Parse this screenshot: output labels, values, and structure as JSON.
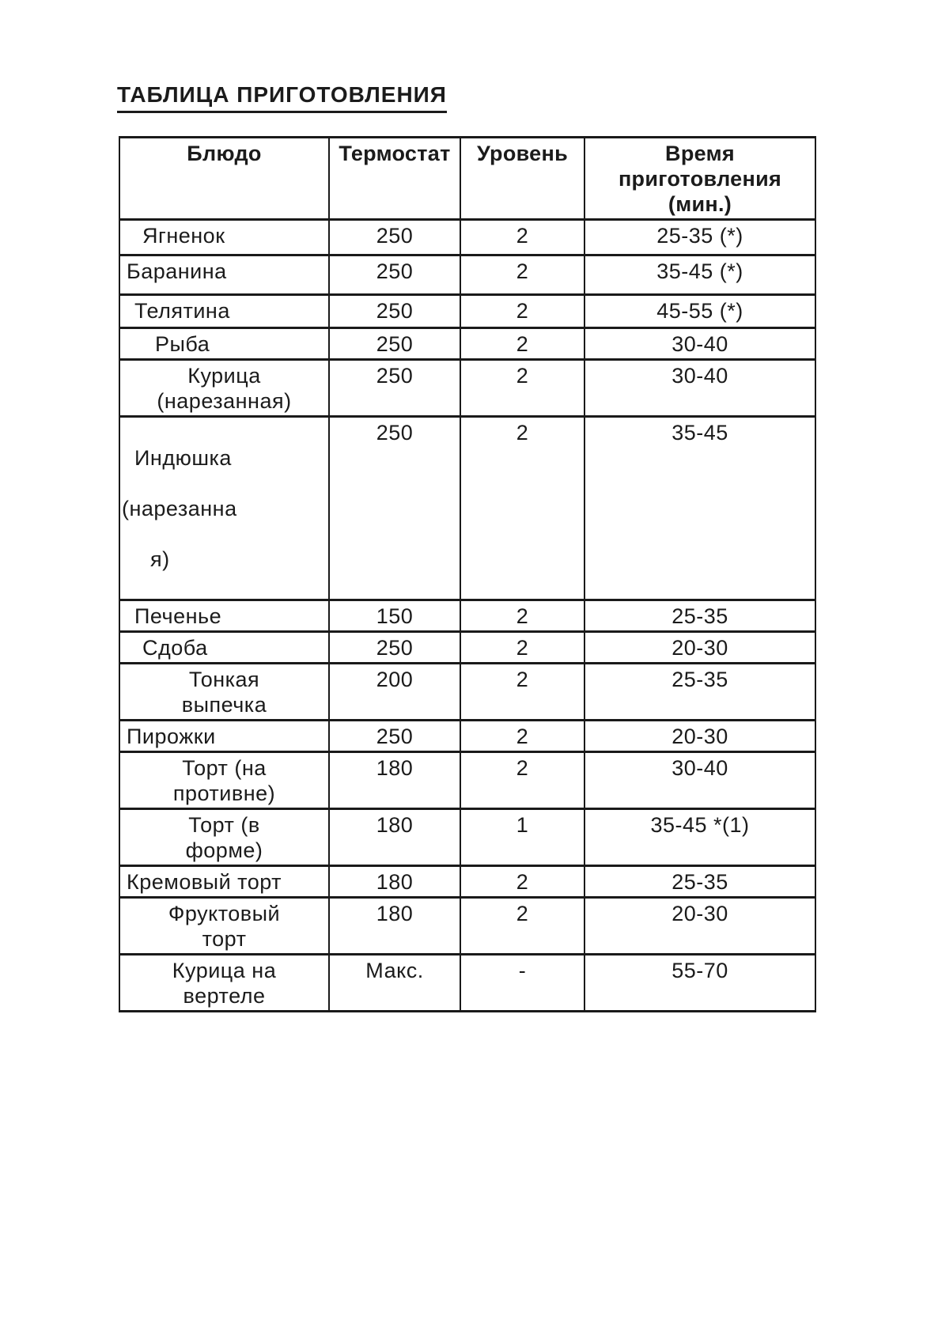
{
  "title": "ТАБЛИЦА ПРИГОТОВЛЕНИЯ",
  "table": {
    "headers": {
      "dish": "Блюдо",
      "thermostat": "Термостат",
      "level": "Уровень",
      "time": "Время\nприготовления (мин.)"
    },
    "rows": [
      {
        "dish": "Ягненок",
        "thermostat": "250",
        "level": "2",
        "time": "25-35 (*)"
      },
      {
        "dish": "Баранина",
        "thermostat": "250",
        "level": "2",
        "time": "35-45 (*)"
      },
      {
        "dish": "Телятина",
        "thermostat": "250",
        "level": "2",
        "time": "45-55 (*)"
      },
      {
        "dish": "Рыба",
        "thermostat": "250",
        "level": "2",
        "time": "30-40"
      },
      {
        "dish": "Курица\n(нарезанная)",
        "thermostat": "250",
        "level": "2",
        "time": "30-40"
      },
      {
        "dish_lines": [
          "Индюшка",
          "(нарезанна",
          "я)"
        ],
        "thermostat": "250",
        "level": "2",
        "time": "35-45"
      },
      {
        "dish": "Печенье",
        "thermostat": "150",
        "level": "2",
        "time": "25-35"
      },
      {
        "dish": "Сдоба",
        "thermostat": "250",
        "level": "2",
        "time": "20-30"
      },
      {
        "dish": "Тонкая\nвыпечка",
        "thermostat": "200",
        "level": "2",
        "time": "25-35"
      },
      {
        "dish": "Пирожки",
        "thermostat": "250",
        "level": "2",
        "time": "20-30"
      },
      {
        "dish": "Торт (на\nпротивне)",
        "thermostat": "180",
        "level": "2",
        "time": "30-40"
      },
      {
        "dish": "Торт (в\nформе)",
        "thermostat": "180",
        "level": "1",
        "time": "35-45 *(1)"
      },
      {
        "dish": "Кремовый торт",
        "thermostat": "180",
        "level": "2",
        "time": "25-35"
      },
      {
        "dish": "Фруктовый\nторт",
        "thermostat": "180",
        "level": "2",
        "time": "20-30"
      },
      {
        "dish": "Курица на\nвертеле",
        "thermostat": "Макс.",
        "level": "-",
        "time": "55-70"
      }
    ]
  }
}
